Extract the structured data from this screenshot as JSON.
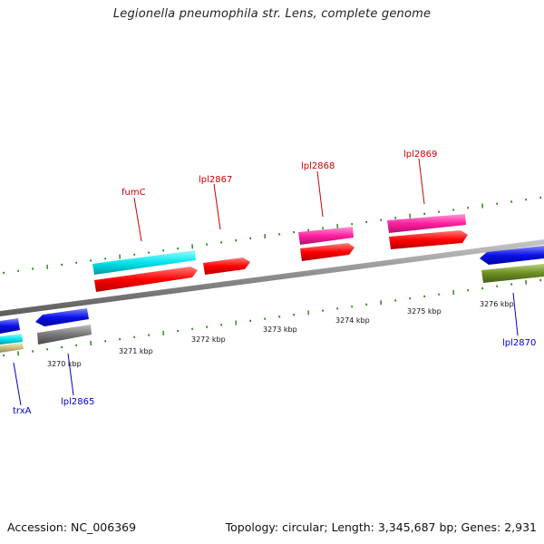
{
  "title": "Legionella pneumophila str. Lens, complete genome",
  "footer": {
    "accession": "Accession: NC_006369",
    "summary": "Topology: circular; Length: 3,345,687 bp; Genes: 2,931"
  },
  "colors": {
    "backbone": "#8a8a8a",
    "tick": "#2e8b22",
    "forward_label": "#cc0000",
    "reverse_label": "#0000cc",
    "cyan": "#00e5ee",
    "red": "#ff0000",
    "magenta": "#ff1fa0",
    "blue": "#0a10e8",
    "gray": "#777777",
    "olive": "#6b8e23",
    "khaki": "#c9c080"
  },
  "scale_labels": [
    "3270 kbp",
    "3271 kbp",
    "3272 kbp",
    "3273 kbp",
    "3274 kbp",
    "3275 kbp",
    "3276 kbp"
  ],
  "features": [
    {
      "name": "fumC",
      "track": "forward-outer",
      "color": "cyan"
    },
    {
      "name": "fumC",
      "track": "forward-inner",
      "color": "red"
    },
    {
      "name": "lpl2867",
      "track": "forward-inner",
      "color": "red"
    },
    {
      "name": "lpl2868",
      "track": "forward-outer",
      "color": "magenta"
    },
    {
      "name": "lpl2868",
      "track": "forward-inner",
      "color": "red"
    },
    {
      "name": "lpl2869",
      "track": "forward-outer",
      "color": "magenta"
    },
    {
      "name": "lpl2869",
      "track": "forward-inner",
      "color": "red"
    },
    {
      "name": "trxA",
      "track": "reverse",
      "color": "blue"
    },
    {
      "name": "lpl2865",
      "track": "reverse",
      "color": "blue"
    },
    {
      "name": "lpl2865",
      "track": "reverse-inner",
      "color": "gray"
    },
    {
      "name": "lpl2870",
      "track": "reverse",
      "color": "blue"
    },
    {
      "name": "lpl2870",
      "track": "reverse-inner",
      "color": "olive"
    }
  ],
  "gene_labels": {
    "forward": [
      "fumC",
      "lpl2867",
      "lpl2868",
      "lpl2869"
    ],
    "reverse": [
      "trxA",
      "lpl2865",
      "lpl2870"
    ]
  }
}
